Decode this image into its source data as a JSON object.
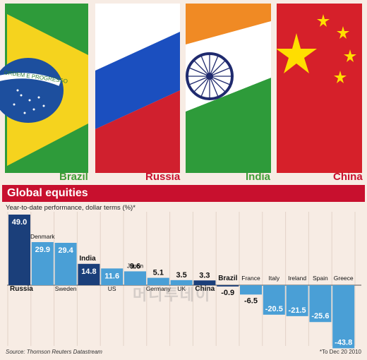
{
  "flags": [
    {
      "label": "Brazil",
      "label_color": "#3f9c35"
    },
    {
      "label": "Russia",
      "label_color": "#c8102e"
    },
    {
      "label": "India",
      "label_color": "#3f9c35"
    },
    {
      "label": "China",
      "label_color": "#c8102e"
    }
  ],
  "brazil_flag_motto": "ORDEM E PROGRESSO",
  "title": "Global equities",
  "subtitle": "Year-to-date performance, dollar terms (%)*",
  "source": "Source: Thomson Reuters Datastream",
  "footnote": "*To Dec 20 2010",
  "watermark": "머니투데이",
  "chart_data": {
    "type": "bar",
    "categories": [
      "Russia",
      "Denmark",
      "Sweden",
      "India",
      "US",
      "Japan",
      "Germany",
      "UK",
      "China",
      "Brazil",
      "France",
      "Italy",
      "Ireland",
      "Spain",
      "Greece"
    ],
    "values": [
      49.0,
      29.9,
      29.4,
      14.8,
      11.6,
      9.6,
      5.1,
      3.5,
      3.3,
      -0.9,
      -6.5,
      -20.5,
      -21.5,
      -25.6,
      -43.8
    ],
    "value_labels": [
      "49.0",
      "29.9",
      "29.4",
      "14.8",
      "11.6",
      "9.6",
      "5.1",
      "3.5",
      "3.3",
      "-0.9",
      "-6.5",
      "-20.5",
      "-21.5",
      "-25.6",
      "-43.8"
    ],
    "highlight": [
      "Russia",
      "India",
      "China",
      "Brazil"
    ],
    "colors": {
      "highlight": "#1b3f7a",
      "normal": "#4a9fd6"
    },
    "ylim": [
      -45,
      50
    ]
  }
}
